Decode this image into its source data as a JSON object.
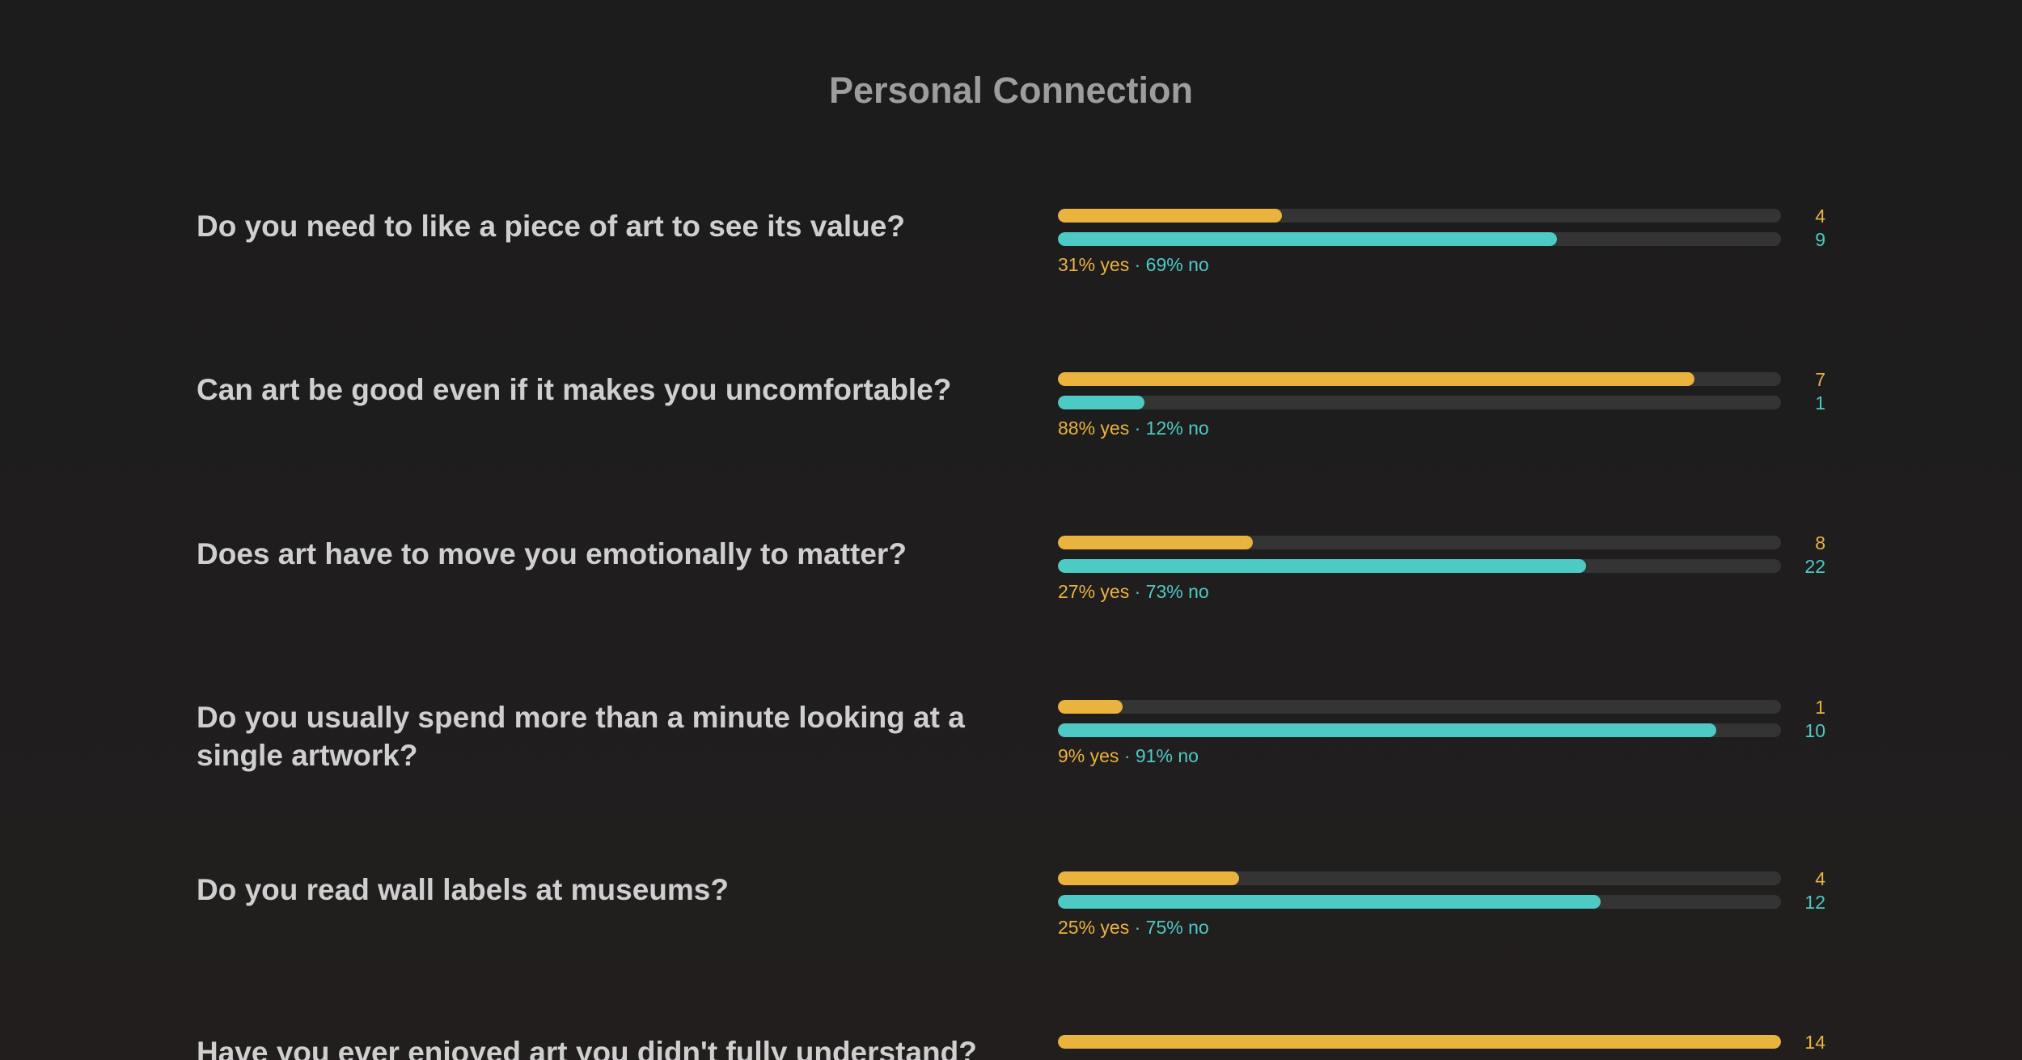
{
  "page": {
    "title": "Personal Connection"
  },
  "colors": {
    "yes": "#e9b33e",
    "no": "#4ecac4",
    "track": "#353434",
    "question": "#cfcfcf",
    "title": "#9d9d9d"
  },
  "questions": [
    {
      "text": "Do you need to like a piece of art to see its value?",
      "yes_count": "4",
      "no_count": "9",
      "yes_percent": "31% yes",
      "no_percent": "69% no",
      "separator": " · ",
      "yes_fraction": 0.31,
      "no_fraction": 0.69
    },
    {
      "text": "Can art be good even if it makes you uncomfortable?",
      "yes_count": "7",
      "no_count": "1",
      "yes_percent": "88% yes",
      "no_percent": "12% no",
      "separator": " · ",
      "yes_fraction": 0.88,
      "no_fraction": 0.12
    },
    {
      "text": "Does art have to move you emotionally to matter?",
      "yes_count": "8",
      "no_count": "22",
      "yes_percent": "27% yes",
      "no_percent": "73% no",
      "separator": " · ",
      "yes_fraction": 0.27,
      "no_fraction": 0.73
    },
    {
      "text": "Do you usually spend more than a minute looking at a single artwork?",
      "yes_count": "1",
      "no_count": "10",
      "yes_percent": "9% yes",
      "no_percent": "91% no",
      "separator": " · ",
      "yes_fraction": 0.09,
      "no_fraction": 0.91
    },
    {
      "text": "Do you read wall labels at museums?",
      "yes_count": "4",
      "no_count": "12",
      "yes_percent": "25% yes",
      "no_percent": "75% no",
      "separator": " · ",
      "yes_fraction": 0.25,
      "no_fraction": 0.75
    },
    {
      "text": "Have you ever enjoyed art you didn't fully understand?",
      "yes_count": "14",
      "yes_fraction": 1.0
    }
  ]
}
